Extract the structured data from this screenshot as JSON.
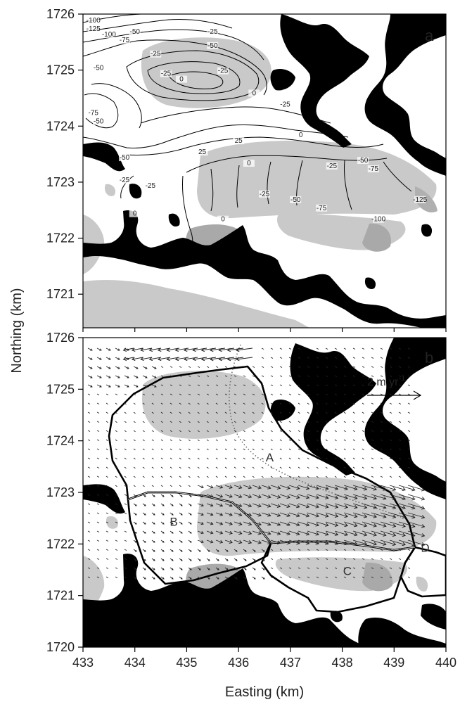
{
  "figure": {
    "x_axis_title": "Easting (km)",
    "y_axis_title": "Northing (km)"
  },
  "panel_a": {
    "letter": "a",
    "x_ticks": [
      433,
      434,
      435,
      436,
      437,
      438,
      439,
      440
    ],
    "y_ticks": [
      1721,
      1722,
      1723,
      1724,
      1725,
      1726
    ],
    "contour_labels": [
      {
        "text": "-100",
        "x": 433.2,
        "y": 1725.85
      },
      {
        "text": "-125",
        "x": 433.2,
        "y": 1725.7
      },
      {
        "text": "-100",
        "x": 433.5,
        "y": 1725.6
      },
      {
        "text": "-75",
        "x": 433.8,
        "y": 1725.5
      },
      {
        "text": "-50",
        "x": 434.0,
        "y": 1725.65
      },
      {
        "text": "-25",
        "x": 435.5,
        "y": 1725.65
      },
      {
        "text": "-50",
        "x": 433.3,
        "y": 1725.0
      },
      {
        "text": "-25",
        "x": 434.4,
        "y": 1725.25
      },
      {
        "text": "-25",
        "x": 434.6,
        "y": 1724.9
      },
      {
        "text": "-50",
        "x": 435.5,
        "y": 1725.4
      },
      {
        "text": "-25",
        "x": 435.7,
        "y": 1724.95
      },
      {
        "text": "-75",
        "x": 433.2,
        "y": 1724.2
      },
      {
        "text": "-50",
        "x": 433.3,
        "y": 1724.05
      },
      {
        "text": "-50",
        "x": 433.8,
        "y": 1723.4
      },
      {
        "text": "-25",
        "x": 433.8,
        "y": 1723.0
      },
      {
        "text": "0",
        "x": 434.9,
        "y": 1724.8
      },
      {
        "text": "0",
        "x": 436.3,
        "y": 1724.55
      },
      {
        "text": "-25",
        "x": 436.9,
        "y": 1724.35
      },
      {
        "text": "0",
        "x": 437.2,
        "y": 1723.8
      },
      {
        "text": "25",
        "x": 436.0,
        "y": 1723.7
      },
      {
        "text": "0",
        "x": 436.2,
        "y": 1723.3
      },
      {
        "text": "25",
        "x": 435.3,
        "y": 1723.5
      },
      {
        "text": "-25",
        "x": 437.8,
        "y": 1723.25
      },
      {
        "text": "-50",
        "x": 438.4,
        "y": 1723.35
      },
      {
        "text": "-75",
        "x": 438.6,
        "y": 1723.2
      },
      {
        "text": "-25",
        "x": 436.5,
        "y": 1722.75
      },
      {
        "text": "-50",
        "x": 437.1,
        "y": 1722.65
      },
      {
        "text": "-75",
        "x": 437.6,
        "y": 1722.5
      },
      {
        "text": "-100",
        "x": 438.7,
        "y": 1722.3
      },
      {
        "text": "-125",
        "x": 439.5,
        "y": 1722.65
      },
      {
        "text": "-25",
        "x": 434.3,
        "y": 1722.9
      },
      {
        "text": "0",
        "x": 434.0,
        "y": 1722.4
      },
      {
        "text": "0",
        "x": 435.7,
        "y": 1722.3
      }
    ]
  },
  "panel_b": {
    "letter": "b",
    "x_ticks": [
      433,
      434,
      435,
      436,
      437,
      438,
      439,
      440
    ],
    "y_ticks": [
      1720,
      1721,
      1722,
      1723,
      1724,
      1725,
      1726
    ],
    "scale_label": "2 m yr",
    "scale_label_exp": "-1",
    "regions": [
      {
        "text": "A",
        "x": 436.6,
        "y": 1723.6
      },
      {
        "text": "B",
        "x": 434.75,
        "y": 1722.35
      },
      {
        "text": "C",
        "x": 438.1,
        "y": 1721.4
      },
      {
        "text": "D",
        "x": 439.6,
        "y": 1721.85
      }
    ]
  }
}
